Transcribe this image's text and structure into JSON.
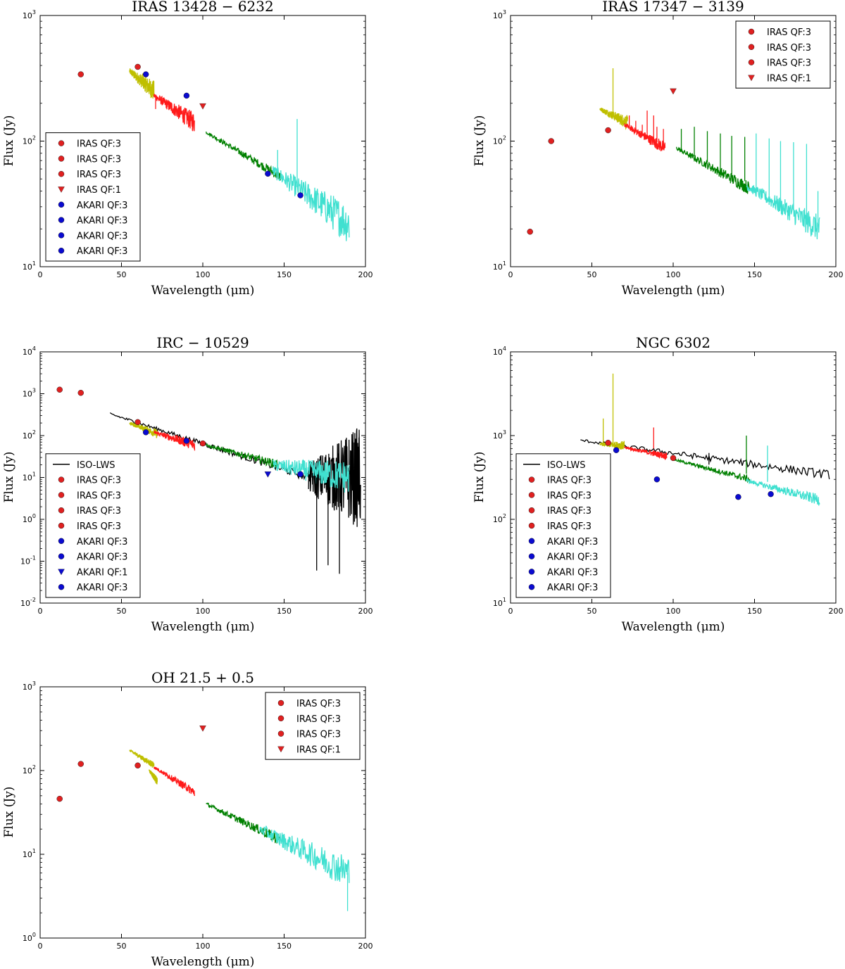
{
  "figure": {
    "colors": {
      "iras": "#e02020",
      "akari": "#0a0ad0",
      "iso": "#000000",
      "seg_yellow": "#bfbf00",
      "seg_red": "#ff1a1a",
      "seg_green": "#008000",
      "seg_cyan": "#40e0d0"
    }
  },
  "chart_data": [
    {
      "type": "scatter",
      "title": "IRAS 13428 − 6232",
      "xlabel": "Wavelength (μm)",
      "ylabel": "Flux (Jy)",
      "xlim": [
        0,
        200
      ],
      "ylim_exp": [
        1,
        3
      ],
      "yscale": "log",
      "xticks": [
        "0",
        "50",
        "100",
        "150",
        "200"
      ],
      "legend_position": "lower-left",
      "legend": [
        {
          "label": "IRAS QF:3",
          "marker": "circle",
          "color": "#e02020"
        },
        {
          "label": "IRAS QF:3",
          "marker": "circle",
          "color": "#e02020"
        },
        {
          "label": "IRAS QF:3",
          "marker": "circle",
          "color": "#e02020"
        },
        {
          "label": "IRAS QF:1",
          "marker": "triangle",
          "color": "#e02020"
        },
        {
          "label": "AKARI QF:3",
          "marker": "circle",
          "color": "#0a0ad0"
        },
        {
          "label": "AKARI QF:3",
          "marker": "circle",
          "color": "#0a0ad0"
        },
        {
          "label": "AKARI QF:3",
          "marker": "circle",
          "color": "#0a0ad0"
        },
        {
          "label": "AKARI QF:3",
          "marker": "circle",
          "color": "#0a0ad0"
        }
      ],
      "points": [
        {
          "x": 25,
          "y": 340,
          "marker": "circle",
          "color": "#e02020"
        },
        {
          "x": 60,
          "y": 390,
          "marker": "circle",
          "color": "#e02020"
        },
        {
          "x": 100,
          "y": 190,
          "marker": "triangle",
          "color": "#e02020"
        },
        {
          "x": 65,
          "y": 340,
          "marker": "circle",
          "color": "#0a0ad0"
        },
        {
          "x": 90,
          "y": 230,
          "marker": "circle",
          "color": "#0a0ad0"
        },
        {
          "x": 140,
          "y": 55,
          "marker": "circle",
          "color": "#0a0ad0"
        },
        {
          "x": 160,
          "y": 37,
          "marker": "circle",
          "color": "#0a0ad0"
        }
      ],
      "segments": [
        {
          "color": "#bfbf00",
          "x0": 55,
          "x1": 70,
          "y0": 360,
          "y1": 250,
          "noise": 0.06
        },
        {
          "color": "#ff1a1a",
          "x0": 70,
          "x1": 95,
          "y0": 230,
          "y1": 140,
          "noise": 0.06
        },
        {
          "color": "#008000",
          "x0": 102,
          "x1": 148,
          "y0": 118,
          "y1": 52,
          "noise": 0.03
        },
        {
          "color": "#40e0d0",
          "x0": 143,
          "x1": 190,
          "y0": 58,
          "y1": 22,
          "noise": 0.12
        }
      ],
      "spikes": [
        {
          "x": 158,
          "y0": 43,
          "y1": 150,
          "color": "#40e0d0"
        },
        {
          "x": 146,
          "y0": 58,
          "y1": 85,
          "color": "#40e0d0"
        },
        {
          "x": 71,
          "y0": 180,
          "y1": 235,
          "color": "#ff1a1a"
        },
        {
          "x": 63,
          "y0": 310,
          "y1": 345,
          "color": "#bfbf00"
        }
      ]
    },
    {
      "type": "scatter",
      "title": "IRAS 17347 − 3139",
      "xlabel": "Wavelength (μm)",
      "ylabel": "Flux (Jy)",
      "xlim": [
        0,
        200
      ],
      "ylim_exp": [
        1,
        3
      ],
      "yscale": "log",
      "xticks": [
        "0",
        "50",
        "100",
        "150",
        "200"
      ],
      "legend_position": "upper-right",
      "legend": [
        {
          "label": "IRAS QF:3",
          "marker": "circle",
          "color": "#e02020"
        },
        {
          "label": "IRAS QF:3",
          "marker": "circle",
          "color": "#e02020"
        },
        {
          "label": "IRAS QF:3",
          "marker": "circle",
          "color": "#e02020"
        },
        {
          "label": "IRAS QF:1",
          "marker": "triangle",
          "color": "#e02020"
        }
      ],
      "points": [
        {
          "x": 12,
          "y": 19,
          "marker": "circle",
          "color": "#e02020"
        },
        {
          "x": 25,
          "y": 100,
          "marker": "circle",
          "color": "#e02020"
        },
        {
          "x": 60,
          "y": 122,
          "marker": "circle",
          "color": "#e02020"
        },
        {
          "x": 100,
          "y": 250,
          "marker": "triangle",
          "color": "#e02020"
        }
      ],
      "segments": [
        {
          "color": "#bfbf00",
          "x0": 55,
          "x1": 72,
          "y0": 180,
          "y1": 140,
          "noise": 0.04
        },
        {
          "color": "#ff1a1a",
          "x0": 70,
          "x1": 95,
          "y0": 135,
          "y1": 88,
          "noise": 0.04
        },
        {
          "color": "#008000",
          "x0": 102,
          "x1": 147,
          "y0": 88,
          "y1": 42,
          "noise": 0.04
        },
        {
          "color": "#40e0d0",
          "x0": 145,
          "x1": 190,
          "y0": 44,
          "y1": 20,
          "noise": 0.08
        }
      ],
      "spikes": [
        {
          "x": 63,
          "y0": 160,
          "y1": 380,
          "color": "#bfbf00"
        },
        {
          "x": 73,
          "y0": 130,
          "y1": 160,
          "color": "#ff1a1a"
        },
        {
          "x": 77,
          "y0": 120,
          "y1": 145,
          "color": "#ff1a1a"
        },
        {
          "x": 81,
          "y0": 110,
          "y1": 135,
          "color": "#ff1a1a"
        },
        {
          "x": 84,
          "y0": 105,
          "y1": 175,
          "color": "#ff1a1a"
        },
        {
          "x": 88,
          "y0": 100,
          "y1": 160,
          "color": "#ff1a1a"
        },
        {
          "x": 90,
          "y0": 98,
          "y1": 130,
          "color": "#ff1a1a"
        },
        {
          "x": 94,
          "y0": 90,
          "y1": 125,
          "color": "#ff1a1a"
        },
        {
          "x": 105,
          "y0": 82,
          "y1": 125,
          "color": "#008000"
        },
        {
          "x": 113,
          "y0": 76,
          "y1": 130,
          "color": "#008000"
        },
        {
          "x": 121,
          "y0": 68,
          "y1": 120,
          "color": "#008000"
        },
        {
          "x": 129,
          "y0": 60,
          "y1": 115,
          "color": "#008000"
        },
        {
          "x": 136,
          "y0": 54,
          "y1": 110,
          "color": "#008000"
        },
        {
          "x": 144,
          "y0": 48,
          "y1": 108,
          "color": "#008000"
        },
        {
          "x": 151,
          "y0": 40,
          "y1": 115,
          "color": "#40e0d0"
        },
        {
          "x": 159,
          "y0": 36,
          "y1": 105,
          "color": "#40e0d0"
        },
        {
          "x": 166,
          "y0": 32,
          "y1": 100,
          "color": "#40e0d0"
        },
        {
          "x": 174,
          "y0": 28,
          "y1": 98,
          "color": "#40e0d0"
        },
        {
          "x": 182,
          "y0": 24,
          "y1": 95,
          "color": "#40e0d0"
        },
        {
          "x": 189,
          "y0": 21,
          "y1": 40,
          "color": "#40e0d0"
        }
      ]
    },
    {
      "type": "scatter",
      "title": "IRC − 10529",
      "xlabel": "Wavelength (μm)",
      "ylabel": "Flux (Jy)",
      "xlim": [
        0,
        200
      ],
      "ylim_exp": [
        -2,
        4
      ],
      "yscale": "log",
      "xticks": [
        "0",
        "50",
        "100",
        "150",
        "200"
      ],
      "legend_position": "lower-left",
      "legend": [
        {
          "label": "ISO-LWS",
          "marker": "line",
          "color": "#000000"
        },
        {
          "label": "IRAS QF:3",
          "marker": "circle",
          "color": "#e02020"
        },
        {
          "label": "IRAS QF:3",
          "marker": "circle",
          "color": "#e02020"
        },
        {
          "label": "IRAS QF:3",
          "marker": "circle",
          "color": "#e02020"
        },
        {
          "label": "IRAS QF:3",
          "marker": "circle",
          "color": "#e02020"
        },
        {
          "label": "AKARI QF:3",
          "marker": "circle",
          "color": "#0a0ad0"
        },
        {
          "label": "AKARI QF:3",
          "marker": "circle",
          "color": "#0a0ad0"
        },
        {
          "label": "AKARI QF:1",
          "marker": "triangle",
          "color": "#0a0ad0"
        },
        {
          "label": "AKARI QF:3",
          "marker": "circle",
          "color": "#0a0ad0"
        }
      ],
      "points": [
        {
          "x": 12,
          "y": 1250,
          "marker": "circle",
          "color": "#e02020"
        },
        {
          "x": 25,
          "y": 1050,
          "marker": "circle",
          "color": "#e02020"
        },
        {
          "x": 60,
          "y": 210,
          "marker": "circle",
          "color": "#e02020"
        },
        {
          "x": 100,
          "y": 65,
          "marker": "circle",
          "color": "#e02020"
        },
        {
          "x": 65,
          "y": 120,
          "marker": "circle",
          "color": "#0a0ad0"
        },
        {
          "x": 90,
          "y": 75,
          "marker": "circle",
          "color": "#0a0ad0"
        },
        {
          "x": 140,
          "y": 12,
          "marker": "triangle",
          "color": "#0a0ad0"
        },
        {
          "x": 160,
          "y": 12,
          "marker": "circle",
          "color": "#0a0ad0"
        }
      ],
      "segments": [
        {
          "color": "#000000",
          "x0": 43,
          "x1": 165,
          "y0": 330,
          "y1": 10,
          "noise": 0.07
        },
        {
          "color": "#bfbf00",
          "x0": 55,
          "x1": 72,
          "y0": 200,
          "y1": 110,
          "noise": 0.08
        },
        {
          "color": "#ff1a1a",
          "x0": 70,
          "x1": 95,
          "y0": 120,
          "y1": 60,
          "noise": 0.1
        },
        {
          "color": "#008000",
          "x0": 102,
          "x1": 147,
          "y0": 60,
          "y1": 20,
          "noise": 0.08
        },
        {
          "color": "#000000",
          "x0": 165,
          "x1": 197,
          "y0": 10,
          "y1": 10,
          "noise": 0.9
        },
        {
          "color": "#40e0d0",
          "x0": 143,
          "x1": 190,
          "y0": 20,
          "y1": 10,
          "noise": 0.3
        }
      ],
      "spikes": [
        {
          "x": 170,
          "y0": 0.06,
          "y1": 10,
          "color": "#000000"
        },
        {
          "x": 177,
          "y0": 0.08,
          "y1": 10,
          "color": "#000000"
        },
        {
          "x": 184,
          "y0": 0.05,
          "y1": 10,
          "color": "#000000"
        },
        {
          "x": 196,
          "y0": 10,
          "y1": 90,
          "color": "#000000"
        }
      ]
    },
    {
      "type": "scatter",
      "title": "NGC 6302",
      "xlabel": "Wavelength (μm)",
      "ylabel": "Flux (Jy)",
      "xlim": [
        0,
        200
      ],
      "ylim_exp": [
        1,
        4
      ],
      "yscale": "log",
      "xticks": [
        "0",
        "50",
        "100",
        "150",
        "200"
      ],
      "legend_position": "lower-left",
      "legend": [
        {
          "label": "ISO-LWS",
          "marker": "line",
          "color": "#000000"
        },
        {
          "label": "IRAS QF:3",
          "marker": "circle",
          "color": "#e02020"
        },
        {
          "label": "IRAS QF:3",
          "marker": "circle",
          "color": "#e02020"
        },
        {
          "label": "IRAS QF:3",
          "marker": "circle",
          "color": "#e02020"
        },
        {
          "label": "IRAS QF:3",
          "marker": "circle",
          "color": "#e02020"
        },
        {
          "label": "AKARI QF:3",
          "marker": "circle",
          "color": "#0a0ad0"
        },
        {
          "label": "AKARI QF:3",
          "marker": "circle",
          "color": "#0a0ad0"
        },
        {
          "label": "AKARI QF:3",
          "marker": "circle",
          "color": "#0a0ad0"
        },
        {
          "label": "AKARI QF:3",
          "marker": "circle",
          "color": "#0a0ad0"
        }
      ],
      "points": [
        {
          "x": 60,
          "y": 820,
          "marker": "circle",
          "color": "#e02020"
        },
        {
          "x": 100,
          "y": 540,
          "marker": "circle",
          "color": "#e02020"
        },
        {
          "x": 65,
          "y": 670,
          "marker": "circle",
          "color": "#0a0ad0"
        },
        {
          "x": 90,
          "y": 300,
          "marker": "circle",
          "color": "#0a0ad0"
        },
        {
          "x": 140,
          "y": 185,
          "marker": "circle",
          "color": "#0a0ad0"
        },
        {
          "x": 160,
          "y": 200,
          "marker": "circle",
          "color": "#0a0ad0"
        }
      ],
      "segments": [
        {
          "color": "#000000",
          "x0": 43,
          "x1": 196,
          "y0": 880,
          "y1": 340,
          "noise": 0.04
        },
        {
          "color": "#bfbf00",
          "x0": 55,
          "x1": 70,
          "y0": 790,
          "y1": 760,
          "noise": 0.04
        },
        {
          "color": "#ff1a1a",
          "x0": 70,
          "x1": 96,
          "y0": 720,
          "y1": 570,
          "noise": 0.03
        },
        {
          "color": "#008000",
          "x0": 100,
          "x1": 147,
          "y0": 520,
          "y1": 300,
          "noise": 0.03
        },
        {
          "color": "#40e0d0",
          "x0": 145,
          "x1": 190,
          "y0": 290,
          "y1": 170,
          "noise": 0.05
        }
      ],
      "spikes": [
        {
          "x": 63,
          "y0": 800,
          "y1": 5500,
          "color": "#bfbf00"
        },
        {
          "x": 57,
          "y0": 800,
          "y1": 1600,
          "color": "#bfbf00"
        },
        {
          "x": 88,
          "y0": 700,
          "y1": 1250,
          "color": "#ff1a1a"
        },
        {
          "x": 145,
          "y0": 350,
          "y1": 1000,
          "color": "#008000"
        },
        {
          "x": 158,
          "y0": 280,
          "y1": 760,
          "color": "#40e0d0"
        },
        {
          "x": 122,
          "y0": 450,
          "y1": 620,
          "color": "#000000"
        }
      ]
    },
    {
      "type": "scatter",
      "title": "OH 21.5 + 0.5",
      "xlabel": "Wavelength (μm)",
      "ylabel": "Flux (Jy)",
      "xlim": [
        0,
        200
      ],
      "ylim_exp": [
        0,
        3
      ],
      "yscale": "log",
      "xticks": [
        "0",
        "50",
        "100",
        "150",
        "200"
      ],
      "legend_position": "upper-right",
      "legend": [
        {
          "label": "IRAS QF:3",
          "marker": "circle",
          "color": "#e02020"
        },
        {
          "label": "IRAS QF:3",
          "marker": "circle",
          "color": "#e02020"
        },
        {
          "label": "IRAS QF:3",
          "marker": "circle",
          "color": "#e02020"
        },
        {
          "label": "IRAS QF:1",
          "marker": "triangle",
          "color": "#e02020"
        }
      ],
      "points": [
        {
          "x": 12,
          "y": 46,
          "marker": "circle",
          "color": "#e02020"
        },
        {
          "x": 25,
          "y": 120,
          "marker": "circle",
          "color": "#e02020"
        },
        {
          "x": 60,
          "y": 115,
          "marker": "circle",
          "color": "#e02020"
        },
        {
          "x": 100,
          "y": 320,
          "marker": "triangle",
          "color": "#e02020"
        }
      ],
      "segments": [
        {
          "color": "#bfbf00",
          "x0": 55,
          "x1": 70,
          "y0": 175,
          "y1": 115,
          "noise": 0.03
        },
        {
          "color": "#bfbf00",
          "x0": 67,
          "x1": 72,
          "y0": 100,
          "y1": 75,
          "noise": 0.04
        },
        {
          "color": "#ff1a1a",
          "x0": 70,
          "x1": 95,
          "y0": 110,
          "y1": 55,
          "noise": 0.04
        },
        {
          "color": "#008000",
          "x0": 102,
          "x1": 147,
          "y0": 40,
          "y1": 15,
          "noise": 0.05
        },
        {
          "color": "#40e0d0",
          "x0": 135,
          "x1": 190,
          "y0": 20,
          "y1": 6,
          "noise": 0.15
        }
      ],
      "spikes": [
        {
          "x": 189,
          "y0": 2.1,
          "y1": 6,
          "color": "#40e0d0"
        }
      ]
    }
  ]
}
